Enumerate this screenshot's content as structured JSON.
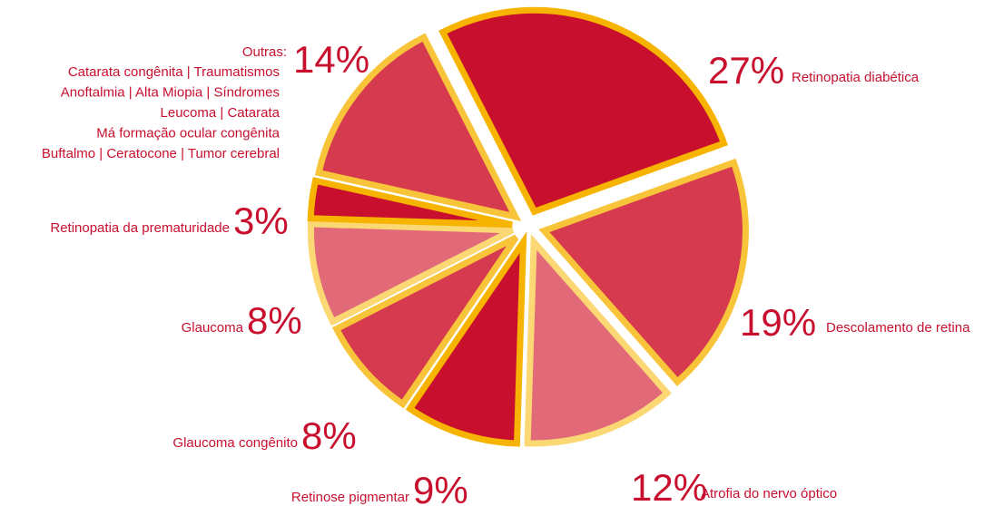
{
  "chart_data": {
    "type": "pie",
    "categories": [
      "Retinopatia diabética",
      "Descolamento de retina",
      "Atrofia do nervo óptico",
      "Retinose pigmentar",
      "Glaucoma congênito",
      "Glaucoma",
      "Retinopatia da prematuridade",
      "Outras:"
    ],
    "values": [
      27,
      19,
      12,
      9,
      8,
      8,
      3,
      14
    ],
    "value_labels": [
      "27%",
      "19%",
      "12%",
      "9%",
      "8%",
      "8%",
      "3%",
      "14%"
    ],
    "colors": [
      "#c8102e",
      "#d63a4e",
      "#e26a78",
      "#c8102e",
      "#d63a4e",
      "#e26a78",
      "#c8102e",
      "#d63a4e"
    ],
    "edge_colors": [
      "#f6b400",
      "#f8c43a",
      "#fbd873",
      "#f6b400",
      "#f8c43a",
      "#fbd873",
      "#f6b400",
      "#f8c43a"
    ],
    "annotations": [
      "Catarata congênita | Traumatismos",
      "Anoftalmia | Alta Miopia | Síndromes",
      "Leucoma | Catarata",
      "Má formação ocular congênita",
      "Buftalmo | Ceratocone | Tumor cerebral"
    ]
  }
}
